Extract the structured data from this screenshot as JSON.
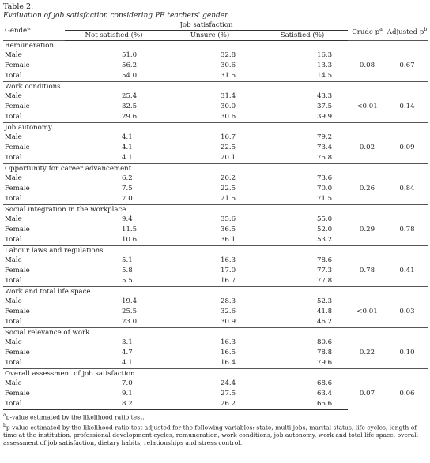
{
  "caption": {
    "title": "Table 2.",
    "subtitle": "Evaluation of job satisfaction considering PE teachers' gender"
  },
  "header": {
    "gender": "Gender",
    "group": "Job satisfaction",
    "not_satisfied": "Not satisfied (%)",
    "unsure": "Unsure (%)",
    "satisfied": "Satisfied (%)",
    "crude_p": "Crude p",
    "crude_mark": "a",
    "adjusted_p": "Adjusted p",
    "adjusted_mark": "b"
  },
  "sections": [
    {
      "title": "Remuneration",
      "crude_p": "0.08",
      "adjusted_p": "0.67",
      "rows": [
        {
          "g": "Male",
          "ns": "51.0",
          "un": "32.8",
          "sa": "16.3"
        },
        {
          "g": "Female",
          "ns": "56.2",
          "un": "30.6",
          "sa": "13.3"
        },
        {
          "g": "Total",
          "ns": "54.0",
          "un": "31.5",
          "sa": "14.5"
        }
      ]
    },
    {
      "title": "Work conditions",
      "crude_p": "<0.01",
      "adjusted_p": "0.14",
      "rows": [
        {
          "g": "Male",
          "ns": "25.4",
          "un": "31.4",
          "sa": "43.3"
        },
        {
          "g": "Female",
          "ns": "32.5",
          "un": "30.0",
          "sa": "37.5"
        },
        {
          "g": "Total",
          "ns": "29.6",
          "un": "30.6",
          "sa": "39.9"
        }
      ]
    },
    {
      "title": "Job autonomy",
      "crude_p": "0.02",
      "adjusted_p": "0.09",
      "rows": [
        {
          "g": "Male",
          "ns": "4.1",
          "un": "16.7",
          "sa": "79.2"
        },
        {
          "g": "Female",
          "ns": "4.1",
          "un": "22.5",
          "sa": "73.4"
        },
        {
          "g": "Total",
          "ns": "4.1",
          "un": "20.1",
          "sa": "75.8"
        }
      ]
    },
    {
      "title": "Opportunity for career advancement",
      "crude_p": "0.26",
      "adjusted_p": "0.84",
      "rows": [
        {
          "g": "Male",
          "ns": "6.2",
          "un": "20.2",
          "sa": "73.6"
        },
        {
          "g": "Female",
          "ns": "7.5",
          "un": "22.5",
          "sa": "70.0"
        },
        {
          "g": "Total",
          "ns": "7.0",
          "un": "21.5",
          "sa": "71.5"
        }
      ]
    },
    {
      "title": "Social integration in the workplace",
      "crude_p": "0.29",
      "adjusted_p": "0.78",
      "rows": [
        {
          "g": "Male",
          "ns": "9.4",
          "un": "35.6",
          "sa": "55.0"
        },
        {
          "g": "Female",
          "ns": "11.5",
          "un": "36.5",
          "sa": "52.0"
        },
        {
          "g": "Total",
          "ns": "10.6",
          "un": "36.1",
          "sa": "53.2"
        }
      ]
    },
    {
      "title": "Labour laws and regulations",
      "crude_p": "0.78",
      "adjusted_p": "0.41",
      "rows": [
        {
          "g": "Male",
          "ns": "5.1",
          "un": "16.3",
          "sa": "78.6"
        },
        {
          "g": "Female",
          "ns": "5.8",
          "un": "17.0",
          "sa": "77.3"
        },
        {
          "g": "Total",
          "ns": "5.5",
          "un": "16.7",
          "sa": "77.8"
        }
      ]
    },
    {
      "title": "Work and total life space",
      "crude_p": "<0.01",
      "adjusted_p": "0.03",
      "rows": [
        {
          "g": "Male",
          "ns": "19.4",
          "un": "28.3",
          "sa": "52.3"
        },
        {
          "g": "Female",
          "ns": "25.5",
          "un": "32.6",
          "sa": "41.8"
        },
        {
          "g": "Total",
          "ns": "23.0",
          "un": "30.9",
          "sa": "46.2"
        }
      ]
    },
    {
      "title": "Social relevance of work",
      "crude_p": "0.22",
      "adjusted_p": "0.10",
      "rows": [
        {
          "g": "Male",
          "ns": "3.1",
          "un": "16.3",
          "sa": "80.6"
        },
        {
          "g": "Female",
          "ns": "4.7",
          "un": "16.5",
          "sa": "78.8"
        },
        {
          "g": "Total",
          "ns": "4.1",
          "un": "16.4",
          "sa": "79.6"
        }
      ]
    },
    {
      "title": "Overall assessment of job satisfaction",
      "crude_p": "0.07",
      "adjusted_p": "0.06",
      "rows": [
        {
          "g": "Male",
          "ns": "7.0",
          "un": "24.4",
          "sa": "68.6"
        },
        {
          "g": "Female",
          "ns": "9.1",
          "un": "27.5",
          "sa": "63.4"
        },
        {
          "g": "Total",
          "ns": "8.2",
          "un": "26.2",
          "sa": "65.6"
        }
      ]
    }
  ],
  "footnotes": [
    {
      "mark": "a",
      "text": "p-value estimated by the likelihood ratio test."
    },
    {
      "mark": "b",
      "text": "p-value estimated by the likelihood ratio test adjusted for the following variables: state, multi-jobs, marital status, life cycles, length of time at the institution, professional development cycles, remuneration, work conditions, job autonomy, work and total life space, overall assessment of job satisfaction, dietary habits, relationships and stress control."
    }
  ]
}
